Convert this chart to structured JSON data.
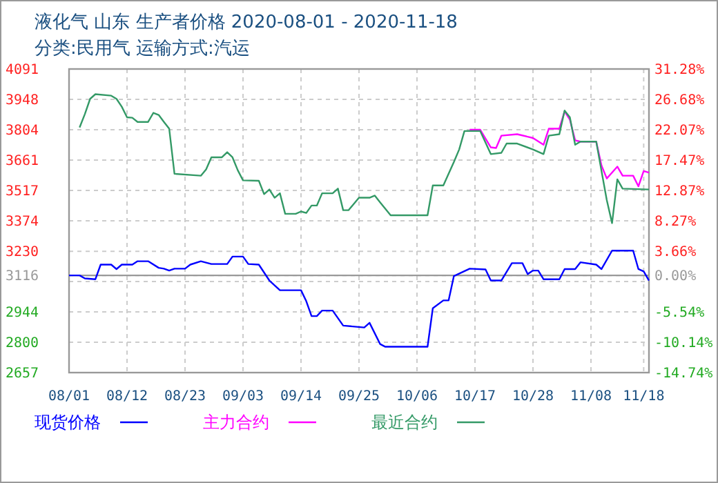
{
  "chart_data": {
    "type": "line",
    "title": "液化气 山东 生产者价格 2020-08-01 - 2020-11-18",
    "subtitle": "分类:民用气 运输方式:汽运",
    "xlim": [
      "2020-08-01",
      "2020-11-19"
    ],
    "xticks": [
      {
        "value": "2020-08-01",
        "label": "08/01"
      },
      {
        "value": "2020-08-12",
        "label": "08/12"
      },
      {
        "value": "2020-08-23",
        "label": "08/23"
      },
      {
        "value": "2020-09-03",
        "label": "09/03"
      },
      {
        "value": "2020-09-14",
        "label": "09/14"
      },
      {
        "value": "2020-09-25",
        "label": "09/25"
      },
      {
        "value": "2020-10-06",
        "label": "10/06"
      },
      {
        "value": "2020-10-17",
        "label": "10/17"
      },
      {
        "value": "2020-10-28",
        "label": "10/28"
      },
      {
        "value": "2020-11-08",
        "label": "11/08"
      },
      {
        "value": "2020-11-18",
        "label": "11/18"
      }
    ],
    "ylim": [
      2657,
      4091
    ],
    "yticks": [
      4091,
      3948,
      3804,
      3661,
      3517,
      3374,
      3230,
      3116,
      {
        "value": 3087,
        "label": null
      },
      2944,
      2800,
      2657
    ],
    "y2lim": [
      -14.74,
      31.28
    ],
    "y2ticks": [
      {
        "value": 31.28,
        "label": "31.28%"
      },
      {
        "value": 26.68,
        "label": "26.68%"
      },
      {
        "value": 22.07,
        "label": "22.07%"
      },
      {
        "value": 17.47,
        "label": "17.47%"
      },
      {
        "value": 12.87,
        "label": "12.87%"
      },
      {
        "value": 8.27,
        "label": "8.27%"
      },
      {
        "value": 3.66,
        "label": "3.66%"
      },
      {
        "value": 0,
        "label": "0.00%"
      },
      {
        "value": -5.54,
        "label": "-5.54%"
      },
      {
        "value": -10.14,
        "label": "-10.14%"
      },
      {
        "value": -14.74,
        "label": "-14.74%"
      }
    ],
    "ref_lines": [
      {
        "axis": "y",
        "value": 3116,
        "color": "#999999"
      }
    ],
    "grid": true,
    "legend": "bottom",
    "marker": "none",
    "line_style": "solid",
    "series": [
      {
        "name": "现货价格",
        "color": "#0000ff",
        "x": [
          "2020-08-01",
          "2020-08-03",
          "2020-08-04",
          "2020-08-06",
          "2020-08-07",
          "2020-08-09",
          "2020-08-10",
          "2020-08-11",
          "2020-08-13",
          "2020-08-14",
          "2020-08-16",
          "2020-08-18",
          "2020-08-19",
          "2020-08-20",
          "2020-08-21",
          "2020-08-23",
          "2020-08-24",
          "2020-08-26",
          "2020-08-28",
          "2020-08-31",
          "2020-09-01",
          "2020-09-03",
          "2020-09-04",
          "2020-09-06",
          "2020-09-08",
          "2020-09-10",
          "2020-09-14",
          "2020-09-15",
          "2020-09-16",
          "2020-09-17",
          "2020-09-18",
          "2020-09-20",
          "2020-09-22",
          "2020-09-26",
          "2020-09-27",
          "2020-09-29",
          "2020-09-30",
          "2020-10-08",
          "2020-10-09",
          "2020-10-11",
          "2020-10-12",
          "2020-10-13",
          "2020-10-16",
          "2020-10-19",
          "2020-10-20",
          "2020-10-22",
          "2020-10-24",
          "2020-10-26",
          "2020-10-27",
          "2020-10-28",
          "2020-10-29",
          "2020-10-30",
          "2020-11-02",
          "2020-11-03",
          "2020-11-05",
          "2020-11-06",
          "2020-11-09",
          "2020-11-10",
          "2020-11-12",
          "2020-11-16",
          "2020-11-17",
          "2020-11-18",
          "2020-11-19"
        ],
        "values": [
          3116,
          3116,
          3102,
          3098,
          3167,
          3167,
          3146,
          3167,
          3167,
          3183,
          3183,
          3152,
          3148,
          3139,
          3148,
          3148,
          3167,
          3183,
          3170,
          3170,
          3205,
          3205,
          3170,
          3167,
          3092,
          3046,
          3046,
          2994,
          2924,
          2924,
          2950,
          2950,
          2879,
          2870,
          2892,
          2792,
          2779,
          2779,
          2961,
          2998,
          2998,
          3113,
          3148,
          3144,
          3092,
          3092,
          3174,
          3174,
          3122,
          3139,
          3139,
          3098,
          3098,
          3146,
          3146,
          3178,
          3167,
          3146,
          3233,
          3233,
          3146,
          3135,
          3092
        ]
      },
      {
        "name": "主力合约",
        "color": "#ff00ff",
        "x": [
          "2020-10-16",
          "2020-10-18",
          "2020-10-20",
          "2020-10-21",
          "2020-10-22",
          "2020-10-25",
          "2020-10-28",
          "2020-10-30",
          "2020-10-31",
          "2020-11-02",
          "2020-11-03",
          "2020-11-04",
          "2020-11-05",
          "2020-11-06",
          "2020-11-09",
          "2020-11-10",
          "2020-11-11",
          "2020-11-13",
          "2020-11-14",
          "2020-11-16",
          "2020-11-17",
          "2020-11-18",
          "2020-11-19"
        ],
        "values": [
          3804,
          3804,
          3721,
          3718,
          3776,
          3783,
          3765,
          3733,
          3809,
          3809,
          3891,
          3852,
          3754,
          3748,
          3748,
          3635,
          3574,
          3630,
          3587,
          3587,
          3537,
          3609,
          3602
        ]
      },
      {
        "name": "最近合约",
        "color": "#339966",
        "x": [
          "2020-08-03",
          "2020-08-04",
          "2020-08-05",
          "2020-08-06",
          "2020-08-09",
          "2020-08-10",
          "2020-08-11",
          "2020-08-12",
          "2020-08-13",
          "2020-08-14",
          "2020-08-16",
          "2020-08-17",
          "2020-08-18",
          "2020-08-19",
          "2020-08-20",
          "2020-08-21",
          "2020-08-26",
          "2020-08-27",
          "2020-08-28",
          "2020-08-30",
          "2020-08-31",
          "2020-09-01",
          "2020-09-02",
          "2020-09-03",
          "2020-09-06",
          "2020-09-07",
          "2020-09-08",
          "2020-09-09",
          "2020-09-10",
          "2020-09-11",
          "2020-09-13",
          "2020-09-14",
          "2020-09-15",
          "2020-09-16",
          "2020-09-17",
          "2020-09-18",
          "2020-09-20",
          "2020-09-21",
          "2020-09-22",
          "2020-09-23",
          "2020-09-25",
          "2020-09-27",
          "2020-09-28",
          "2020-09-29",
          "2020-10-01",
          "2020-10-08",
          "2020-10-09",
          "2020-10-11",
          "2020-10-13",
          "2020-10-14",
          "2020-10-15",
          "2020-10-18",
          "2020-10-20",
          "2020-10-22",
          "2020-10-23",
          "2020-10-25",
          "2020-10-28",
          "2020-10-30",
          "2020-10-31",
          "2020-11-02",
          "2020-11-03",
          "2020-11-04",
          "2020-11-05",
          "2020-11-06",
          "2020-11-09",
          "2020-11-10",
          "2020-11-11",
          "2020-11-12",
          "2020-11-13",
          "2020-11-14",
          "2020-11-19"
        ],
        "values": [
          3815,
          3878,
          3950,
          3972,
          3965,
          3950,
          3913,
          3863,
          3861,
          3841,
          3841,
          3884,
          3874,
          3841,
          3809,
          3596,
          3587,
          3617,
          3674,
          3674,
          3698,
          3674,
          3613,
          3565,
          3563,
          3500,
          3522,
          3483,
          3504,
          3407,
          3407,
          3418,
          3411,
          3446,
          3446,
          3504,
          3504,
          3526,
          3424,
          3424,
          3483,
          3483,
          3493,
          3461,
          3400,
          3400,
          3541,
          3541,
          3652,
          3711,
          3798,
          3798,
          3689,
          3695,
          3739,
          3739,
          3711,
          3689,
          3776,
          3783,
          3895,
          3863,
          3733,
          3748,
          3748,
          3609,
          3472,
          3363,
          3570,
          3526,
          3522
        ]
      }
    ]
  }
}
